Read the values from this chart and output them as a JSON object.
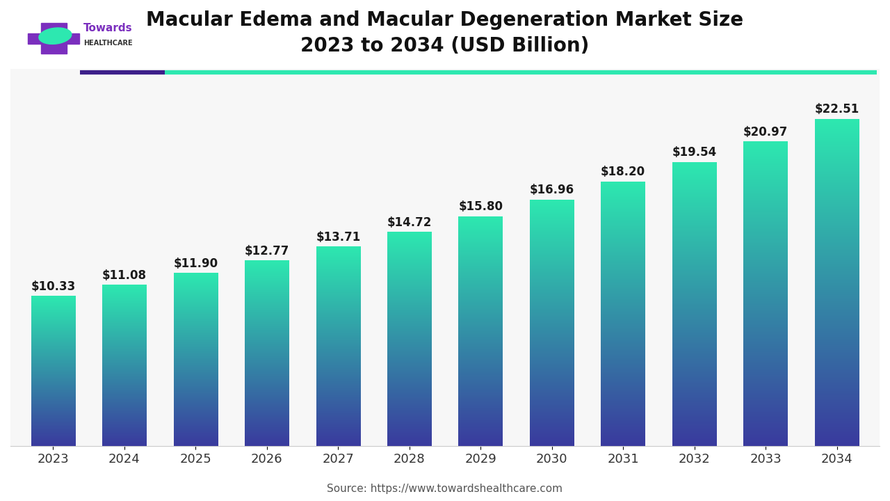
{
  "title": "Macular Edema and Macular Degeneration Market Size\n2023 to 2034 (USD Billion)",
  "source": "Source: https://www.towardshealthcare.com",
  "years": [
    2023,
    2024,
    2025,
    2026,
    2027,
    2028,
    2029,
    2030,
    2031,
    2032,
    2033,
    2034
  ],
  "values": [
    10.33,
    11.08,
    11.9,
    12.77,
    13.71,
    14.72,
    15.8,
    16.96,
    18.2,
    19.54,
    20.97,
    22.51
  ],
  "bar_color_top": "#2de8b0",
  "bar_color_bottom": "#3a3a9e",
  "background_color": "#ffffff",
  "plot_bg_color": "#f7f7f7",
  "title_fontsize": 20,
  "tick_fontsize": 13,
  "label_fontsize": 12,
  "source_fontsize": 11,
  "grid_color": "#dddddd",
  "bar_width": 0.62,
  "ylim": [
    0,
    26
  ],
  "accent_color1": "#3d1f8a",
  "accent_color2": "#2de8b0",
  "logo_color": "#7b2fbe"
}
